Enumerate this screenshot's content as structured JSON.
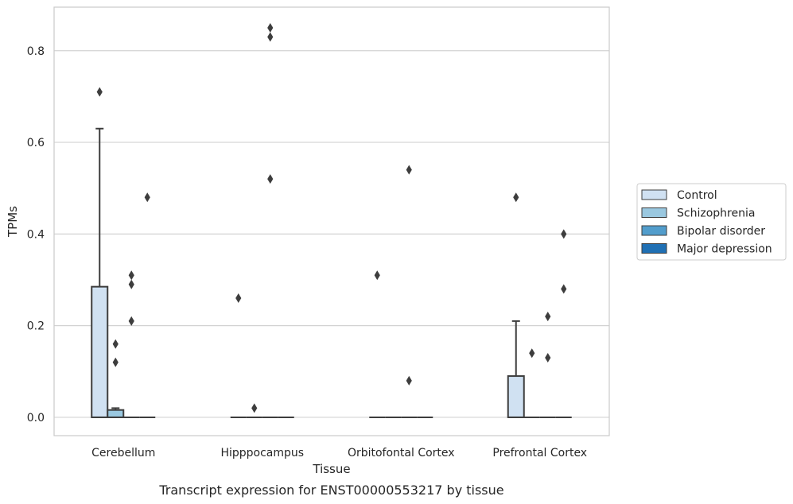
{
  "chart_data": {
    "type": "box",
    "xlabel": "Tissue",
    "ylabel": "TPMs",
    "caption": "Transcript expression for ENST00000553217 by tissue",
    "ylim": [
      -0.04,
      0.895
    ],
    "yticks": [
      "0.0",
      "0.2",
      "0.4",
      "0.6",
      "0.8"
    ],
    "ytick_values": [
      0.0,
      0.2,
      0.4,
      0.6,
      0.8
    ],
    "grid": "horizontal",
    "legend_position": "right",
    "categories": [
      "Cerebellum",
      "Hipppocampus",
      "Orbitofontal Cortex",
      "Prefrontal Cortex"
    ],
    "series": [
      {
        "name": "Control",
        "color": "#d0e1f2"
      },
      {
        "name": "Schizophrenia",
        "color": "#9ac8e0"
      },
      {
        "name": "Bipolar disorder",
        "color": "#529dcc"
      },
      {
        "name": "Major depression",
        "color": "#2070b4"
      }
    ],
    "boxes": [
      {
        "category": 0,
        "series": 0,
        "q1": 0.0,
        "median": 0.0,
        "q3": 0.285,
        "whisker_low": 0.0,
        "whisker_high": 0.63,
        "outliers": [
          0.71
        ]
      },
      {
        "category": 0,
        "series": 1,
        "q1": 0.0,
        "median": 0.0,
        "q3": 0.016,
        "whisker_low": 0.0,
        "whisker_high": 0.02,
        "outliers": [
          0.16,
          0.12
        ]
      },
      {
        "category": 0,
        "series": 2,
        "q1": 0.0,
        "median": 0.0,
        "q3": 0.0,
        "whisker_low": 0.0,
        "whisker_high": 0.0,
        "outliers": [
          0.31,
          0.29,
          0.21
        ]
      },
      {
        "category": 0,
        "series": 3,
        "q1": 0.0,
        "median": 0.0,
        "q3": 0.0,
        "whisker_low": 0.0,
        "whisker_high": 0.0,
        "outliers": [
          0.48
        ]
      },
      {
        "category": 1,
        "series": 0,
        "q1": 0.0,
        "median": 0.0,
        "q3": 0.0,
        "whisker_low": 0.0,
        "whisker_high": 0.0,
        "outliers": [
          0.26
        ]
      },
      {
        "category": 1,
        "series": 1,
        "q1": 0.0,
        "median": 0.0,
        "q3": 0.0,
        "whisker_low": 0.0,
        "whisker_high": 0.0,
        "outliers": [
          0.02
        ]
      },
      {
        "category": 1,
        "series": 2,
        "q1": 0.0,
        "median": 0.0,
        "q3": 0.0,
        "whisker_low": 0.0,
        "whisker_high": 0.0,
        "outliers": [
          0.85,
          0.83,
          0.52
        ]
      },
      {
        "category": 1,
        "series": 3,
        "q1": 0.0,
        "median": 0.0,
        "q3": 0.0,
        "whisker_low": 0.0,
        "whisker_high": 0.0,
        "outliers": []
      },
      {
        "category": 2,
        "series": 0,
        "q1": 0.0,
        "median": 0.0,
        "q3": 0.0,
        "whisker_low": 0.0,
        "whisker_high": 0.0,
        "outliers": [
          0.31
        ]
      },
      {
        "category": 2,
        "series": 1,
        "q1": 0.0,
        "median": 0.0,
        "q3": 0.0,
        "whisker_low": 0.0,
        "whisker_high": 0.0,
        "outliers": []
      },
      {
        "category": 2,
        "series": 2,
        "q1": 0.0,
        "median": 0.0,
        "q3": 0.0,
        "whisker_low": 0.0,
        "whisker_high": 0.0,
        "outliers": [
          0.54,
          0.08
        ]
      },
      {
        "category": 2,
        "series": 3,
        "q1": 0.0,
        "median": 0.0,
        "q3": 0.0,
        "whisker_low": 0.0,
        "whisker_high": 0.0,
        "outliers": []
      },
      {
        "category": 3,
        "series": 0,
        "q1": 0.0,
        "median": 0.0,
        "q3": 0.09,
        "whisker_low": 0.0,
        "whisker_high": 0.21,
        "outliers": [
          0.48
        ]
      },
      {
        "category": 3,
        "series": 1,
        "q1": 0.0,
        "median": 0.0,
        "q3": 0.0,
        "whisker_low": 0.0,
        "whisker_high": 0.0,
        "outliers": [
          0.14
        ]
      },
      {
        "category": 3,
        "series": 2,
        "q1": 0.0,
        "median": 0.0,
        "q3": 0.0,
        "whisker_low": 0.0,
        "whisker_high": 0.0,
        "outliers": [
          0.22,
          0.13
        ]
      },
      {
        "category": 3,
        "series": 3,
        "q1": 0.0,
        "median": 0.0,
        "q3": 0.0,
        "whisker_low": 0.0,
        "whisker_high": 0.0,
        "outliers": [
          0.4,
          0.28
        ]
      }
    ]
  }
}
